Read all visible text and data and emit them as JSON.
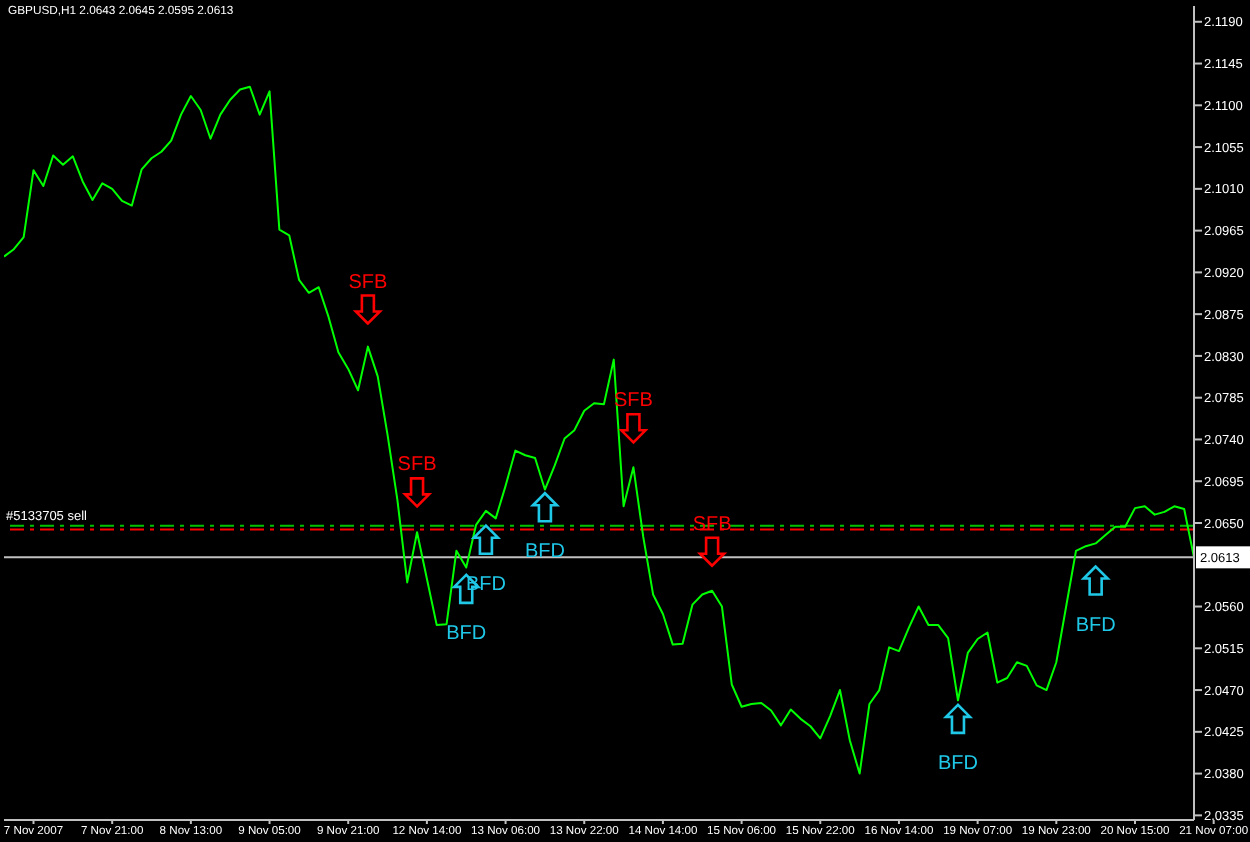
{
  "chart_data": {
    "type": "line",
    "title": "GBPUSD,H1 2.0643 2.0645 2.0595 2.0613",
    "categories": [
      null,
      null,
      null,
      "7 Nov 2007",
      null,
      null,
      null,
      null,
      null,
      null,
      null,
      "7 Nov 21:00",
      null,
      null,
      null,
      null,
      null,
      null,
      null,
      "8 Nov 13:00",
      null,
      null,
      null,
      null,
      null,
      null,
      null,
      "9 Nov 05:00",
      null,
      null,
      null,
      null,
      null,
      null,
      null,
      "9 Nov 21:00",
      null,
      null,
      null,
      null,
      null,
      null,
      null,
      "12 Nov 14:00",
      null,
      null,
      null,
      null,
      null,
      null,
      null,
      "13 Nov 06:00",
      null,
      null,
      null,
      null,
      null,
      null,
      null,
      "13 Nov 22:00",
      null,
      null,
      null,
      null,
      null,
      null,
      null,
      "14 Nov 14:00",
      null,
      null,
      null,
      null,
      null,
      null,
      null,
      "15 Nov 06:00",
      null,
      null,
      null,
      null,
      null,
      null,
      null,
      "15 Nov 22:00",
      null,
      null,
      null,
      null,
      null,
      null,
      null,
      "16 Nov 14:00",
      null,
      null,
      null,
      null,
      null,
      null,
      null,
      "19 Nov 07:00",
      null,
      null,
      null,
      null,
      null,
      null,
      null,
      "19 Nov 23:00",
      null,
      null,
      null,
      null,
      null,
      null,
      null,
      "20 Nov 15:00",
      null,
      null,
      null,
      null,
      null,
      null,
      null,
      "21 Nov 07:00"
    ],
    "series": [
      {
        "color": "#00ff00",
        "values": [
          2.0937,
          2.0945,
          2.0958,
          2.103,
          2.1013,
          2.1046,
          2.1036,
          2.1045,
          2.1018,
          2.0998,
          2.1016,
          2.101,
          2.0997,
          2.0992,
          2.1031,
          2.1043,
          2.105,
          2.1062,
          2.109,
          2.111,
          2.1095,
          2.1064,
          2.109,
          2.1106,
          2.1117,
          2.112,
          2.109,
          2.1115,
          2.0966,
          2.096,
          2.0912,
          2.0898,
          2.0904,
          2.0872,
          2.0834,
          2.0816,
          2.0793,
          2.084,
          2.0808,
          2.0745,
          2.0675,
          2.0586,
          2.064,
          2.059,
          2.054,
          2.0541,
          2.062,
          2.0602,
          2.0648,
          2.0663,
          2.0655,
          2.069,
          2.0728,
          2.0723,
          2.072,
          2.0686,
          2.0712,
          2.0741,
          2.075,
          2.0771,
          2.0779,
          2.0778,
          2.0826,
          2.0668,
          2.071,
          2.0635,
          2.0573,
          2.0552,
          2.0519,
          2.052,
          2.0562,
          2.0573,
          2.0577,
          2.056,
          2.0476,
          2.0452,
          2.0455,
          2.0456,
          2.0448,
          2.0432,
          2.0449,
          2.0439,
          2.0431,
          2.0418,
          2.0442,
          2.047,
          2.0416,
          2.038,
          2.0455,
          2.047,
          2.0516,
          2.0512,
          2.0537,
          2.056,
          2.054,
          2.054,
          2.0526,
          2.0459,
          2.051,
          2.0525,
          2.0532,
          2.0478,
          2.0483,
          2.05,
          2.0496,
          2.0475,
          2.047,
          2.05,
          2.056,
          2.062,
          2.0625,
          2.0628,
          2.0637,
          2.0646,
          2.0646,
          2.0666,
          2.0668,
          2.0659,
          2.0662,
          2.0668,
          2.0665,
          2.0613,
          null,
          null
        ]
      },
      {
        "name": "SFB",
        "type": "scatter",
        "color": "#ff0000",
        "values": [
          null,
          null,
          null,
          null,
          null,
          null,
          null,
          null,
          null,
          null,
          null,
          null,
          null,
          null,
          null,
          null,
          null,
          null,
          null,
          null,
          null,
          null,
          null,
          null,
          null,
          null,
          null,
          null,
          null,
          null,
          null,
          null,
          null,
          null,
          null,
          null,
          null,
          2.088,
          null,
          null,
          null,
          null,
          2.0683,
          null,
          null,
          null,
          null,
          null,
          null,
          null,
          null,
          null,
          null,
          null,
          null,
          null,
          null,
          null,
          null,
          null,
          null,
          null,
          null,
          null,
          2.0752,
          null,
          null,
          null,
          null,
          null,
          null,
          null,
          2.0619,
          null,
          null,
          null,
          null,
          null,
          null,
          null,
          null,
          null,
          null,
          null,
          null,
          null,
          null,
          null,
          null,
          null,
          null,
          null,
          null,
          null,
          null,
          null,
          null,
          null,
          null,
          null,
          null,
          null,
          null,
          null,
          null,
          null,
          null,
          null,
          null,
          null,
          null,
          null,
          null,
          null,
          null,
          null,
          null,
          null,
          null,
          null,
          null,
          null,
          null,
          null
        ]
      },
      {
        "name": "BFD",
        "type": "scatter",
        "color": "#20c8e8",
        "values": [
          null,
          null,
          null,
          null,
          null,
          null,
          null,
          null,
          null,
          null,
          null,
          null,
          null,
          null,
          null,
          null,
          null,
          null,
          null,
          null,
          null,
          null,
          null,
          null,
          null,
          null,
          null,
          null,
          null,
          null,
          null,
          null,
          null,
          null,
          null,
          null,
          null,
          null,
          null,
          null,
          null,
          null,
          null,
          null,
          null,
          null,
          null,
          2.0579,
          null,
          2.0632,
          null,
          null,
          null,
          null,
          null,
          2.0667,
          null,
          null,
          null,
          null,
          null,
          null,
          null,
          null,
          null,
          null,
          null,
          null,
          null,
          null,
          null,
          null,
          null,
          null,
          null,
          null,
          null,
          null,
          null,
          null,
          null,
          null,
          null,
          null,
          null,
          null,
          null,
          null,
          null,
          null,
          null,
          null,
          null,
          null,
          null,
          null,
          null,
          2.0439,
          null,
          null,
          null,
          null,
          null,
          null,
          null,
          null,
          null,
          null,
          null,
          null,
          null,
          2.0588,
          null,
          null,
          null,
          null,
          null,
          null,
          null,
          null,
          null,
          null,
          null,
          null
        ]
      }
    ],
    "ylim": [
      2.033,
      2.1207
    ],
    "yticks": [
      2.0335,
      {
        "value": 2.038,
        "label": "2.0380"
      },
      2.0425,
      {
        "value": 2.047,
        "label": "2.0470"
      },
      2.0515,
      {
        "value": 2.056,
        "label": "2.0560"
      },
      {
        "value": 2.065,
        "label": "2.0650"
      },
      2.0695,
      {
        "value": 2.074,
        "label": "2.0740"
      },
      2.0785,
      {
        "value": 2.083,
        "label": "2.0830"
      },
      2.0875,
      {
        "value": 2.092,
        "label": "2.0920"
      },
      2.0965,
      {
        "value": 2.101,
        "label": "2.1010"
      },
      2.1055,
      {
        "value": 2.11,
        "label": "2.1100"
      },
      2.1145,
      {
        "value": 2.119,
        "label": "2.1190"
      }
    ],
    "ref_lines": [
      {
        "axis": "y",
        "value": 2.0647,
        "label": "#5133705 sell",
        "color": "#00c000",
        "line_style": "dashdot"
      },
      {
        "axis": "y",
        "value": 2.0643,
        "color": "#ff0000",
        "line_style": "dashdot"
      },
      {
        "axis": "y",
        "value": 2.0613,
        "label": "2.0613",
        "color": "#c0c0c0",
        "line_style": "solid"
      }
    ]
  }
}
